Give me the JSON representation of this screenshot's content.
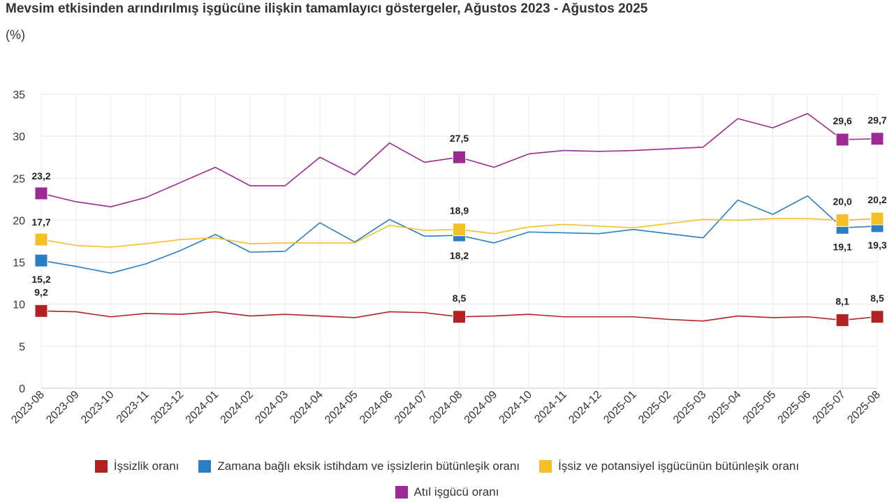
{
  "chart_data": {
    "type": "line",
    "title": "Mevsim etkisinden arındırılmış işgücüne ilişkin tamamlayıcı göstergeler, Ağustos 2023 - Ağustos 2025",
    "unit": "(%)",
    "ylim": [
      0,
      35
    ],
    "yticks": [
      "0",
      "5",
      "10",
      "15",
      "20",
      "25",
      "30",
      "35"
    ],
    "categories": [
      "2023-08",
      "2023-09",
      "2023-10",
      "2023-11",
      "2023-12",
      "2024-01",
      "2024-02",
      "2024-03",
      "2024-04",
      "2024-05",
      "2024-06",
      "2024-07",
      "2024-08",
      "2024-09",
      "2024-10",
      "2024-11",
      "2024-12",
      "2025-01",
      "2025-02",
      "2025-03",
      "2025-04",
      "2025-05",
      "2025-06",
      "2025-07",
      "2025-08"
    ],
    "series": [
      {
        "name": "İşsizlik oranı",
        "color": "#b22222",
        "values": [
          9.2,
          9.1,
          8.5,
          8.9,
          8.8,
          9.1,
          8.6,
          8.8,
          8.6,
          8.4,
          9.1,
          9.0,
          8.5,
          8.6,
          8.8,
          8.5,
          8.5,
          8.5,
          8.2,
          8.0,
          8.6,
          8.4,
          8.5,
          8.1,
          8.5
        ],
        "marked_indices": [
          0,
          12,
          23,
          24
        ],
        "labels": [
          "9,2",
          "8,5",
          "8,1",
          "8,5"
        ]
      },
      {
        "name": "Zamana bağlı eksik istihdam ve işsizlerin bütünleşik oranı",
        "color": "#2a7fc4",
        "values": [
          15.2,
          14.5,
          13.7,
          14.8,
          16.4,
          18.3,
          16.2,
          16.3,
          19.7,
          17.4,
          20.1,
          18.1,
          18.2,
          17.3,
          18.6,
          18.5,
          18.4,
          18.9,
          18.4,
          17.9,
          22.4,
          20.7,
          22.9,
          19.1,
          19.3
        ],
        "marked_indices": [
          0,
          12,
          23,
          24
        ],
        "labels": [
          "15,2",
          "18,2",
          "19,1",
          "19,3"
        ]
      },
      {
        "name": "İşsiz ve potansiyel işgücünün bütünleşik oranı",
        "color": "#f5c026",
        "values": [
          17.7,
          17.0,
          16.8,
          17.2,
          17.7,
          17.9,
          17.2,
          17.3,
          17.3,
          17.3,
          19.4,
          18.8,
          18.9,
          18.4,
          19.2,
          19.5,
          19.3,
          19.1,
          19.6,
          20.1,
          20.0,
          20.2,
          20.2,
          20.0,
          20.2
        ],
        "marked_indices": [
          0,
          12,
          23,
          24
        ],
        "labels": [
          "17,7",
          "18,9",
          "20,0",
          "20,2"
        ]
      },
      {
        "name": "Atıl işgücü oranı",
        "color": "#9c2a92",
        "values": [
          23.2,
          22.2,
          21.6,
          22.7,
          24.5,
          26.3,
          24.1,
          24.1,
          27.5,
          25.4,
          29.2,
          26.9,
          27.5,
          26.3,
          27.9,
          28.3,
          28.2,
          28.3,
          28.5,
          28.7,
          32.1,
          31.0,
          32.7,
          29.6,
          29.7
        ],
        "marked_indices": [
          0,
          12,
          23,
          24
        ],
        "labels": [
          "23,2",
          "27,5",
          "29,6",
          "29,7"
        ]
      }
    ]
  }
}
